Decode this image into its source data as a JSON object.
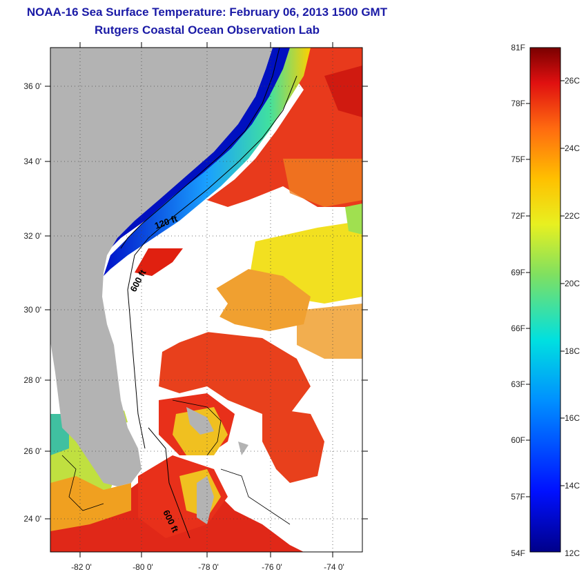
{
  "title": {
    "line1": "NOAA-16 Sea Surface Temperature:  February 06, 2013 1500 GMT",
    "line2": "Rutgers Coastal Ocean Observation Lab"
  },
  "map": {
    "lat_labels": [
      "36 0'",
      "34 0'",
      "32 0'",
      "30 0'",
      "28 0'",
      "26 0'",
      "24 0'"
    ],
    "lon_labels": [
      "-82 0'",
      "-80 0'",
      "-78 0'",
      "-76 0'",
      "-74 0'"
    ],
    "contour_labels": [
      "120 ft",
      "600 ft",
      "600 ft"
    ],
    "colors": {
      "land": "#b3b3b3",
      "cloud": "#ffffff",
      "cold": "#0a1fd0",
      "warm": "#e8301a"
    }
  },
  "colorbar": {
    "f_labels": [
      "81F",
      "78F",
      "75F",
      "72F",
      "69F",
      "66F",
      "63F",
      "60F",
      "57F",
      "54F"
    ],
    "c_labels": [
      "26C",
      "24C",
      "22C",
      "20C",
      "18C",
      "16C",
      "14C",
      "12C"
    ]
  }
}
